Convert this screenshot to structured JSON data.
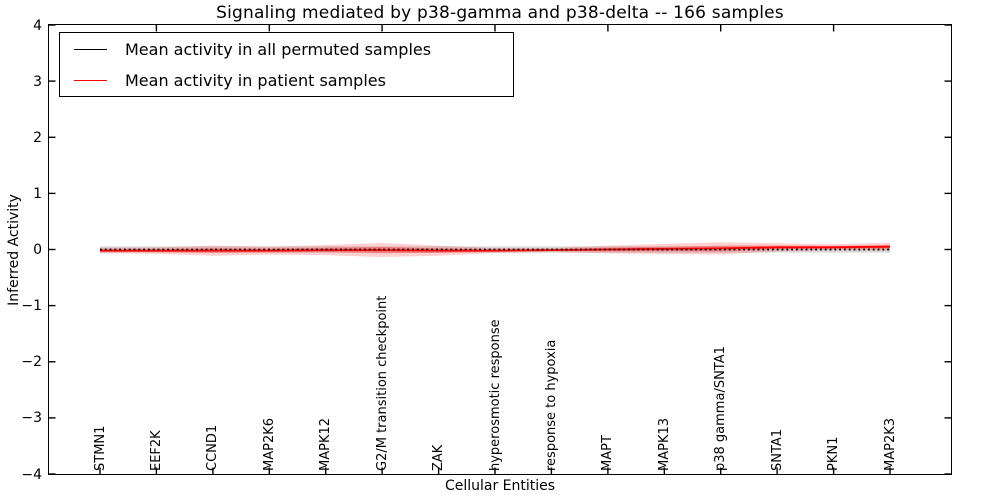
{
  "chart_data": {
    "type": "line",
    "title": "Signaling mediated by p38-gamma and p38-delta -- 166 samples",
    "xlabel": "Cellular Entities",
    "ylabel": "Inferred Activity",
    "ylim": [
      -4,
      4
    ],
    "grid": false,
    "yticks": [
      4,
      3,
      2,
      1,
      0,
      -1,
      -2,
      -3,
      -4
    ],
    "ytick_labels": [
      "4",
      "3",
      "2",
      "1",
      "0",
      "−1",
      "−2",
      "−3",
      "−4"
    ],
    "categories": [
      "STMN1",
      "EEF2K",
      "CCND1",
      "MAP2K6",
      "MAPK12",
      "G2/M transition checkpoint",
      "ZAK",
      "hyperosmotic response",
      "response to hypoxia",
      "MAPT",
      "MAPK13",
      "p38 gamma/SNTA1",
      "SNTA1",
      "PKN1",
      "MAP2K3"
    ],
    "legend": {
      "position": "upper left",
      "entries": [
        {
          "label": "Mean activity in all permuted samples",
          "color": "#000000"
        },
        {
          "label": "Mean activity in patient samples",
          "color": "#ff0000"
        }
      ]
    },
    "series": [
      {
        "name": "Mean activity in all permuted samples",
        "color": "#000000",
        "line_style": "dotted",
        "values": [
          0,
          0,
          0,
          0,
          0,
          0,
          0,
          0,
          0,
          0,
          0,
          0,
          0,
          0,
          0
        ]
      },
      {
        "name": "Mean activity in patient samples",
        "color": "#ff0000",
        "line_style": "solid",
        "values": [
          -0.02,
          -0.02,
          -0.02,
          -0.02,
          -0.01,
          -0.01,
          -0.02,
          -0.02,
          -0.01,
          0,
          0.01,
          0.02,
          0.04,
          0.04,
          0.05
        ]
      }
    ],
    "bands": [
      {
        "name": "permuted sample spread",
        "color": "#999999",
        "opacity": 0.38,
        "center": [
          0,
          0,
          0,
          0,
          0,
          0,
          0,
          0,
          0,
          0,
          0,
          0,
          0,
          0,
          0
        ],
        "half_width": [
          0.055,
          0.055,
          0.055,
          0.055,
          0.055,
          0.055,
          0.055,
          0.055,
          0.055,
          0.055,
          0.055,
          0.055,
          0.055,
          0.055,
          0.055
        ]
      },
      {
        "name": "patient sample spread outer",
        "color": "#ff0000",
        "opacity": 0.18,
        "center": [
          -0.02,
          -0.02,
          -0.02,
          -0.02,
          -0.01,
          -0.01,
          -0.02,
          -0.02,
          -0.01,
          0,
          0.01,
          0.02,
          0.04,
          0.04,
          0.05
        ],
        "half_width": [
          0.05,
          0.055,
          0.09,
          0.07,
          0.09,
          0.125,
          0.09,
          0.045,
          0.035,
          0.07,
          0.09,
          0.11,
          0.07,
          0.055,
          0.07
        ]
      },
      {
        "name": "patient sample spread inner",
        "color": "#ff0000",
        "opacity": 0.3,
        "center": [
          -0.02,
          -0.02,
          -0.02,
          -0.02,
          -0.01,
          -0.01,
          -0.02,
          -0.02,
          -0.01,
          0,
          0.01,
          0.02,
          0.04,
          0.04,
          0.05
        ],
        "half_width": [
          0.022,
          0.025,
          0.04,
          0.032,
          0.04,
          0.056,
          0.04,
          0.02,
          0.016,
          0.032,
          0.04,
          0.05,
          0.032,
          0.025,
          0.032
        ]
      }
    ]
  }
}
